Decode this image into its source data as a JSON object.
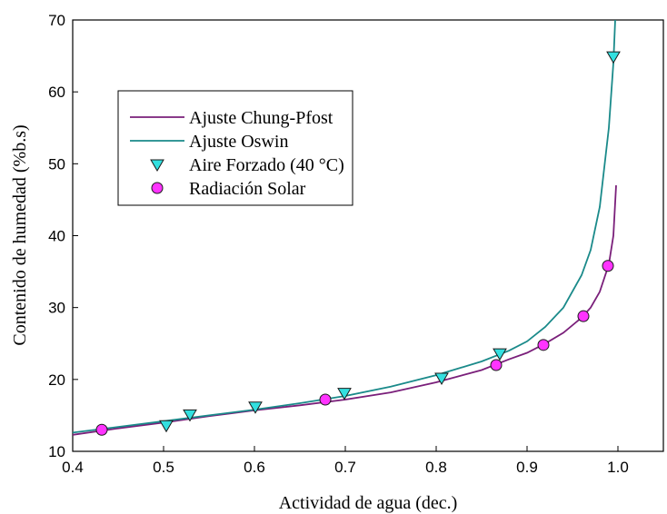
{
  "chart_data": {
    "type": "line",
    "xlabel": "Actividad de agua (dec.)",
    "ylabel": "Contenido de humedad (%b.s)",
    "xlim": [
      0.4,
      1.05
    ],
    "ylim": [
      10,
      70
    ],
    "x_ticks": [
      "0.4",
      "0.5",
      "0.6",
      "0.7",
      "0.8",
      "0.9",
      "1.0"
    ],
    "y_ticks": [
      "10",
      "20",
      "30",
      "40",
      "50",
      "60",
      "70"
    ],
    "grid": false,
    "legend_position": "upper-left",
    "series": [
      {
        "name": "Ajuste Chung-Pfost",
        "kind": "line",
        "color": "#7a1f7a",
        "points": [
          [
            0.4,
            12.3
          ],
          [
            0.45,
            13.2
          ],
          [
            0.5,
            14.0
          ],
          [
            0.55,
            14.9
          ],
          [
            0.6,
            15.7
          ],
          [
            0.65,
            16.4
          ],
          [
            0.7,
            17.2
          ],
          [
            0.75,
            18.2
          ],
          [
            0.8,
            19.6
          ],
          [
            0.85,
            21.3
          ],
          [
            0.88,
            22.8
          ],
          [
            0.9,
            23.7
          ],
          [
            0.92,
            25.0
          ],
          [
            0.94,
            26.5
          ],
          [
            0.96,
            28.6
          ],
          [
            0.97,
            30.0
          ],
          [
            0.98,
            32.2
          ],
          [
            0.99,
            36.0
          ],
          [
            0.995,
            40.0
          ],
          [
            0.998,
            47.0
          ]
        ]
      },
      {
        "name": "Ajuste Oswin",
        "kind": "line",
        "color": "#1a8a8a",
        "points": [
          [
            0.4,
            12.6
          ],
          [
            0.45,
            13.4
          ],
          [
            0.5,
            14.2
          ],
          [
            0.55,
            15.0
          ],
          [
            0.6,
            15.8
          ],
          [
            0.65,
            16.7
          ],
          [
            0.7,
            17.7
          ],
          [
            0.75,
            19.0
          ],
          [
            0.8,
            20.6
          ],
          [
            0.85,
            22.5
          ],
          [
            0.88,
            24.0
          ],
          [
            0.9,
            25.3
          ],
          [
            0.92,
            27.3
          ],
          [
            0.94,
            30.0
          ],
          [
            0.96,
            34.5
          ],
          [
            0.97,
            38.0
          ],
          [
            0.98,
            44.0
          ],
          [
            0.99,
            55.0
          ],
          [
            0.995,
            64.0
          ],
          [
            0.997,
            70.0
          ]
        ]
      },
      {
        "name": "Aire Forzado (40 °C)",
        "kind": "scatter",
        "marker": "triangle-down",
        "color": "#33e0e0",
        "points": [
          [
            0.503,
            13.5
          ],
          [
            0.529,
            15.0
          ],
          [
            0.601,
            16.1
          ],
          [
            0.699,
            18.0
          ],
          [
            0.806,
            20.1
          ],
          [
            0.87,
            23.5
          ],
          [
            0.995,
            64.8
          ]
        ]
      },
      {
        "name": "Radiación Solar",
        "kind": "scatter",
        "marker": "circle",
        "color": "#ff33ff",
        "points": [
          [
            0.432,
            13.0
          ],
          [
            0.678,
            17.2
          ],
          [
            0.866,
            22.0
          ],
          [
            0.918,
            24.8
          ],
          [
            0.962,
            28.8
          ],
          [
            0.989,
            35.8
          ]
        ]
      }
    ]
  }
}
